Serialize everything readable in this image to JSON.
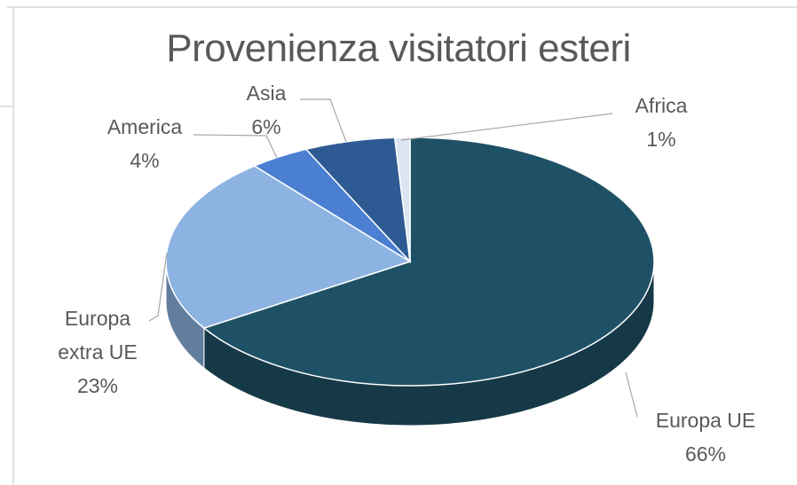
{
  "chart_data": {
    "type": "pie",
    "title": "Provenienza visitatori esteri",
    "categories": [
      "Europa UE",
      "Europa extra UE",
      "America",
      "Asia",
      "Africa"
    ],
    "values": [
      66,
      23,
      4,
      6,
      1
    ],
    "value_labels": [
      "66%",
      "23%",
      "4%",
      "6%",
      "1%"
    ],
    "colors": [
      "#1f5166",
      "#8db3e2",
      "#4a7fd1",
      "#2e5a93",
      "#dce6f2"
    ]
  }
}
